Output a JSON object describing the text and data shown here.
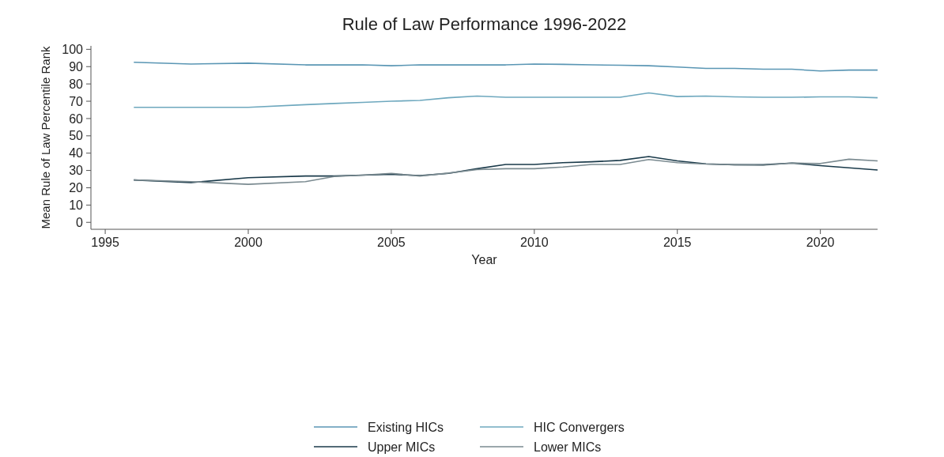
{
  "chart_data": {
    "type": "line",
    "title": "Rule of Law Performance 1996-2022",
    "xlabel": "Year",
    "ylabel": "Mean Rule of Law Percentile Rank",
    "x": [
      1996,
      1998,
      2000,
      2002,
      2003,
      2004,
      2005,
      2006,
      2007,
      2008,
      2009,
      2010,
      2011,
      2012,
      2013,
      2014,
      2015,
      2016,
      2017,
      2018,
      2019,
      2020,
      2021,
      2022
    ],
    "series": [
      {
        "name": "Existing HICs",
        "color": "#5a96b4",
        "values": [
          92.5,
          91.5,
          92,
          91,
          91,
          91,
          90.5,
          91,
          91,
          91,
          91,
          91.5,
          91.3,
          91,
          90.8,
          90.5,
          89.8,
          89,
          89,
          88.5,
          88.5,
          87.5,
          88,
          88
        ]
      },
      {
        "name": "HIC Convergers",
        "color": "#6ea8be",
        "values": [
          66.5,
          66.5,
          66.5,
          68,
          68.7,
          69.3,
          70,
          70.5,
          72,
          73,
          72.3,
          72.3,
          72.3,
          72.3,
          72.3,
          74.8,
          72.7,
          73,
          72.5,
          72.3,
          72.3,
          72.5,
          72.5,
          72
        ]
      },
      {
        "name": "Upper MICs",
        "color": "#1a3a4a",
        "values": [
          24.5,
          23,
          25.8,
          26.8,
          26.8,
          27.3,
          27.8,
          27,
          28.3,
          31,
          33.5,
          33.5,
          34.5,
          35,
          35.8,
          38,
          35.5,
          33.8,
          33.3,
          33.3,
          34.3,
          32.8,
          31.5,
          30.3
        ]
      },
      {
        "name": "Lower MICs",
        "color": "#7a8a90",
        "values": [
          24.5,
          23.5,
          22,
          23.5,
          26.5,
          27.3,
          28.3,
          26.8,
          28.5,
          30.5,
          31,
          31,
          32,
          33.5,
          33.5,
          36.3,
          34.5,
          33.7,
          33.3,
          33,
          34.3,
          34,
          36.5,
          35.5
        ]
      }
    ],
    "xlim": [
      1994.5,
      2022
    ],
    "xticks": [
      1995,
      2000,
      2005,
      2010,
      2015,
      2020
    ],
    "ylim": [
      -4,
      102
    ],
    "yticks": [
      0,
      10,
      20,
      30,
      40,
      50,
      60,
      70,
      80,
      90,
      100
    ],
    "grid": false,
    "legend": "bottom",
    "line_style": "solid"
  }
}
